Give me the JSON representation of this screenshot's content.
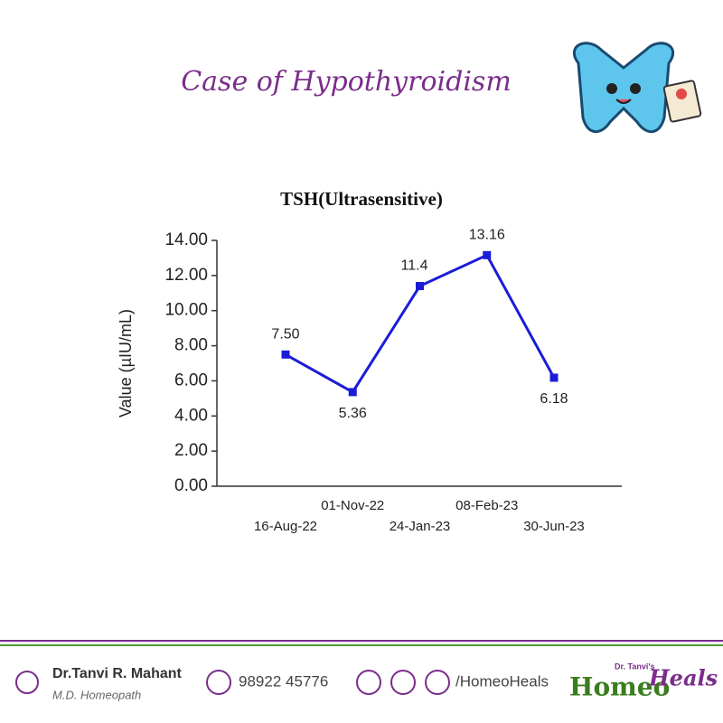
{
  "header": {
    "title": "Case of Hypothyroidism"
  },
  "chart_data": {
    "type": "line",
    "title": "TSH(Ultrasensitive)",
    "y_label": "Value (µIU/mL)",
    "categories": [
      "16-Aug-22",
      "01-Nov-22",
      "24-Jan-23",
      "08-Feb-23",
      "30-Jun-23"
    ],
    "series": [
      {
        "name": "TSH",
        "color": "#1c1cd8",
        "values": [
          7.5,
          5.36,
          11.4,
          13.16,
          6.18
        ],
        "value_labels": [
          "7.50",
          "5.36",
          "11.4",
          "13.16",
          "6.18"
        ]
      }
    ],
    "ylim": [
      0,
      14
    ],
    "yticks": [
      {
        "value": 0,
        "label": "0.00"
      },
      {
        "value": 2,
        "label": "2.00"
      },
      {
        "value": 4,
        "label": "4.00"
      },
      {
        "value": 6,
        "label": "6.00"
      },
      {
        "value": 8,
        "label": "8.00"
      },
      {
        "value": 10,
        "label": "10.00"
      },
      {
        "value": 12,
        "label": "12.00"
      },
      {
        "value": 14,
        "label": "14.00"
      }
    ]
  },
  "footer": {
    "name": "Dr.Tanvi R. Mahant",
    "credential": "M.D. Homeopath",
    "phone": "98922 45776",
    "handle": "/HomeoHeals",
    "brand": {
      "prefix": "Dr. Tanvi's",
      "first": "Homeo",
      "second": "Heals"
    }
  }
}
